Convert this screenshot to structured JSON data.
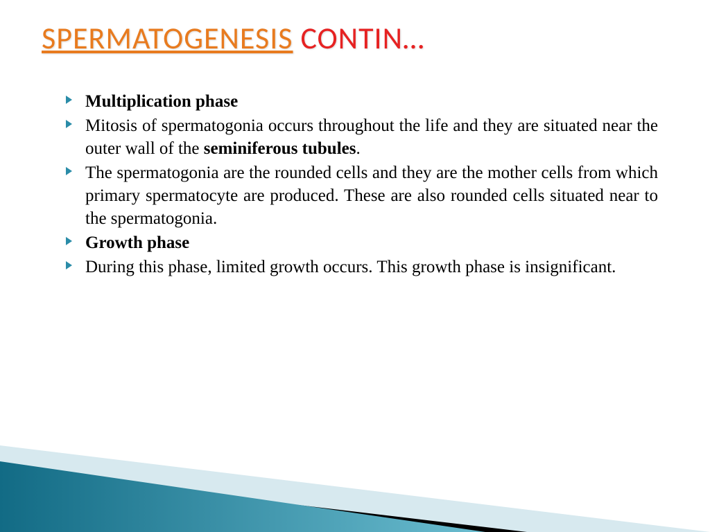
{
  "title": {
    "part1": "SPERMATOGENESIS",
    "part2": " CONTIN…",
    "part1_color": "#e87b1f",
    "part2_color": "#e62222",
    "fontsize": 44
  },
  "bullets": [
    {
      "html": "<span class=\"bold\">Multiplication phase</span>"
    },
    {
      "html": "Mitosis of spermatogonia occurs throughout the life and they are situated near the outer wall of the <span class=\"bold\">seminiferous tubules</span>."
    },
    {
      "html": "The spermatogonia are the rounded cells and they are the mother cells from which primary spermatocyte are produced. These are also rounded cells situated near to the spermatogonia."
    },
    {
      "html": "<span class=\"bold\">Growth phase</span>"
    },
    {
      "html": "During this phase, limited growth occurs. This growth phase is insignificant."
    }
  ],
  "body_fontsize": 25,
  "bullet_color": "#2a8ca8",
  "text_color": "#000000",
  "decor": {
    "triangle_light": "#d7e9ef",
    "triangle_black": "#000000",
    "triangle_teal_light": "#4aa3bb",
    "triangle_teal_dark": "#126b85"
  }
}
